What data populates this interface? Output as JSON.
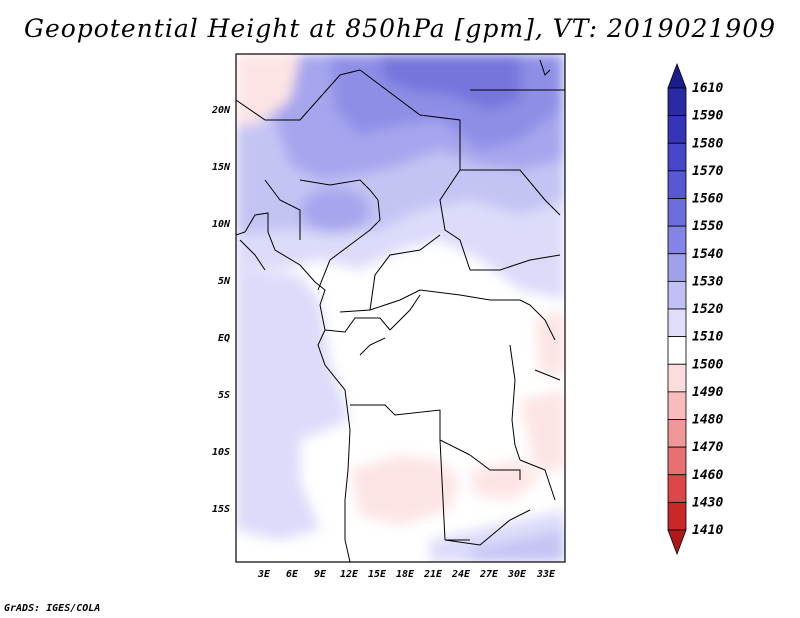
{
  "title": "Geopotential Height at 850hPa [gpm], VT: 2019021909",
  "credit": "GrADS: IGES/COLA",
  "map": {
    "region": "Central Africa",
    "lat_labels": [
      "20N",
      "15N",
      "10N",
      "5N",
      "EQ",
      "5S",
      "10S",
      "15S"
    ],
    "lon_labels": [
      "3E",
      "6E",
      "9E",
      "12E",
      "15E",
      "18E",
      "21E",
      "24E",
      "27E",
      "30E",
      "33E"
    ],
    "border_color": "#000000"
  },
  "colorbar": {
    "levels": [
      "1610",
      "1590",
      "1580",
      "1570",
      "1560",
      "1550",
      "1540",
      "1530",
      "1520",
      "1510",
      "1500",
      "1490",
      "1480",
      "1470",
      "1460",
      "1430",
      "1410"
    ],
    "colors": [
      "#1c1c8c",
      "#2a2aa5",
      "#3535b8",
      "#4646c8",
      "#5858d4",
      "#6d6ddc",
      "#8484e4",
      "#a0a0ec",
      "#c0c0f4",
      "#dedefa",
      "#ffffff",
      "#fcdcdc",
      "#f8bcbc",
      "#f09898",
      "#e87070",
      "#dc4848",
      "#c82828",
      "#b01818"
    ]
  }
}
